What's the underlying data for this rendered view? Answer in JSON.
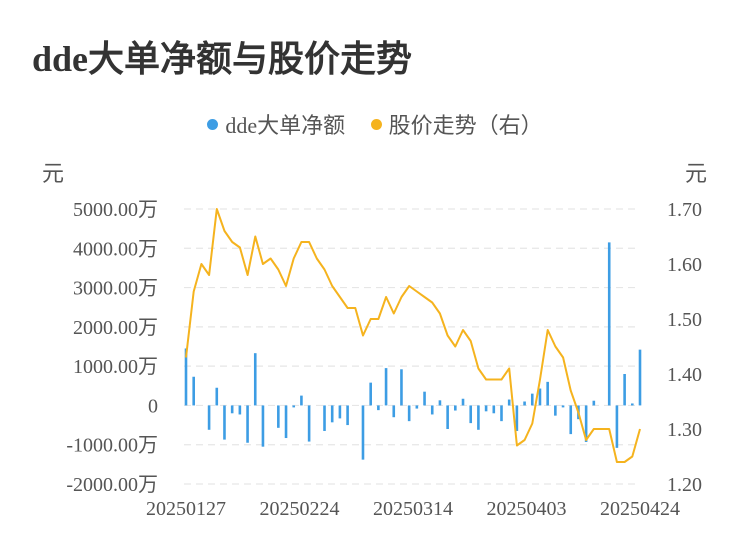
{
  "title": "dde大单净额与股价走势",
  "legend": [
    {
      "label": "dde大单净额",
      "color": "#3d9de4"
    },
    {
      "label": "股价走势（右）",
      "color": "#f5b31e"
    }
  ],
  "units": {
    "left": "元",
    "right": "元"
  },
  "chart_data": {
    "type": "bar",
    "title": "dde大单净额与股价走势",
    "x_ticks": [
      "20250127",
      "20250224",
      "20250314",
      "20250403",
      "20250424"
    ],
    "y_left": {
      "range": [
        -2000,
        5000
      ],
      "ticks": [
        5000,
        4000,
        3000,
        2000,
        1000,
        0,
        -1000,
        -2000
      ],
      "tick_labels": [
        "5000.00万",
        "4000.00万",
        "3000.00万",
        "2000.00万",
        "1000.00万",
        "0",
        "-1000.00万",
        "-2000.00万"
      ]
    },
    "y_right": {
      "range": [
        1.2,
        1.7
      ],
      "ticks": [
        1.7,
        1.6,
        1.5,
        1.4,
        1.3,
        1.2
      ],
      "tick_labels": [
        "1.70",
        "1.60",
        "1.50",
        "1.40",
        "1.30",
        "1.20"
      ]
    },
    "grid": true,
    "legend_position": "top-center",
    "series": [
      {
        "name": "dde大单净额",
        "type": "bar",
        "axis": "left",
        "color": "#3d9de4",
        "values": [
          1450,
          730,
          0,
          -620,
          450,
          -870,
          -200,
          -230,
          -950,
          1330,
          -1050,
          0,
          -570,
          -830,
          -50,
          250,
          -920,
          0,
          -650,
          -430,
          -330,
          -500,
          0,
          -1380,
          580,
          -120,
          950,
          -300,
          920,
          -400,
          -80,
          350,
          -230,
          130,
          -600,
          -130,
          170,
          -450,
          -620,
          -150,
          -200,
          -400,
          150,
          -650,
          100,
          300,
          430,
          600,
          -260,
          -50,
          -730,
          -350,
          -930,
          120,
          0,
          4150,
          -1080,
          800,
          50,
          1420
        ]
      },
      {
        "name": "股价走势（右）",
        "type": "line",
        "axis": "right",
        "color": "#f5b31e",
        "values": [
          1.43,
          1.55,
          1.6,
          1.58,
          1.7,
          1.66,
          1.64,
          1.63,
          1.58,
          1.65,
          1.6,
          1.61,
          1.59,
          1.56,
          1.61,
          1.64,
          1.64,
          1.61,
          1.59,
          1.56,
          1.54,
          1.52,
          1.52,
          1.47,
          1.5,
          1.5,
          1.54,
          1.51,
          1.54,
          1.56,
          1.55,
          1.54,
          1.53,
          1.51,
          1.47,
          1.45,
          1.48,
          1.46,
          1.41,
          1.39,
          1.39,
          1.39,
          1.41,
          1.27,
          1.28,
          1.31,
          1.39,
          1.48,
          1.45,
          1.43,
          1.37,
          1.33,
          1.28,
          1.3,
          1.3,
          1.3,
          1.24,
          1.24,
          1.25,
          1.3
        ]
      }
    ]
  }
}
